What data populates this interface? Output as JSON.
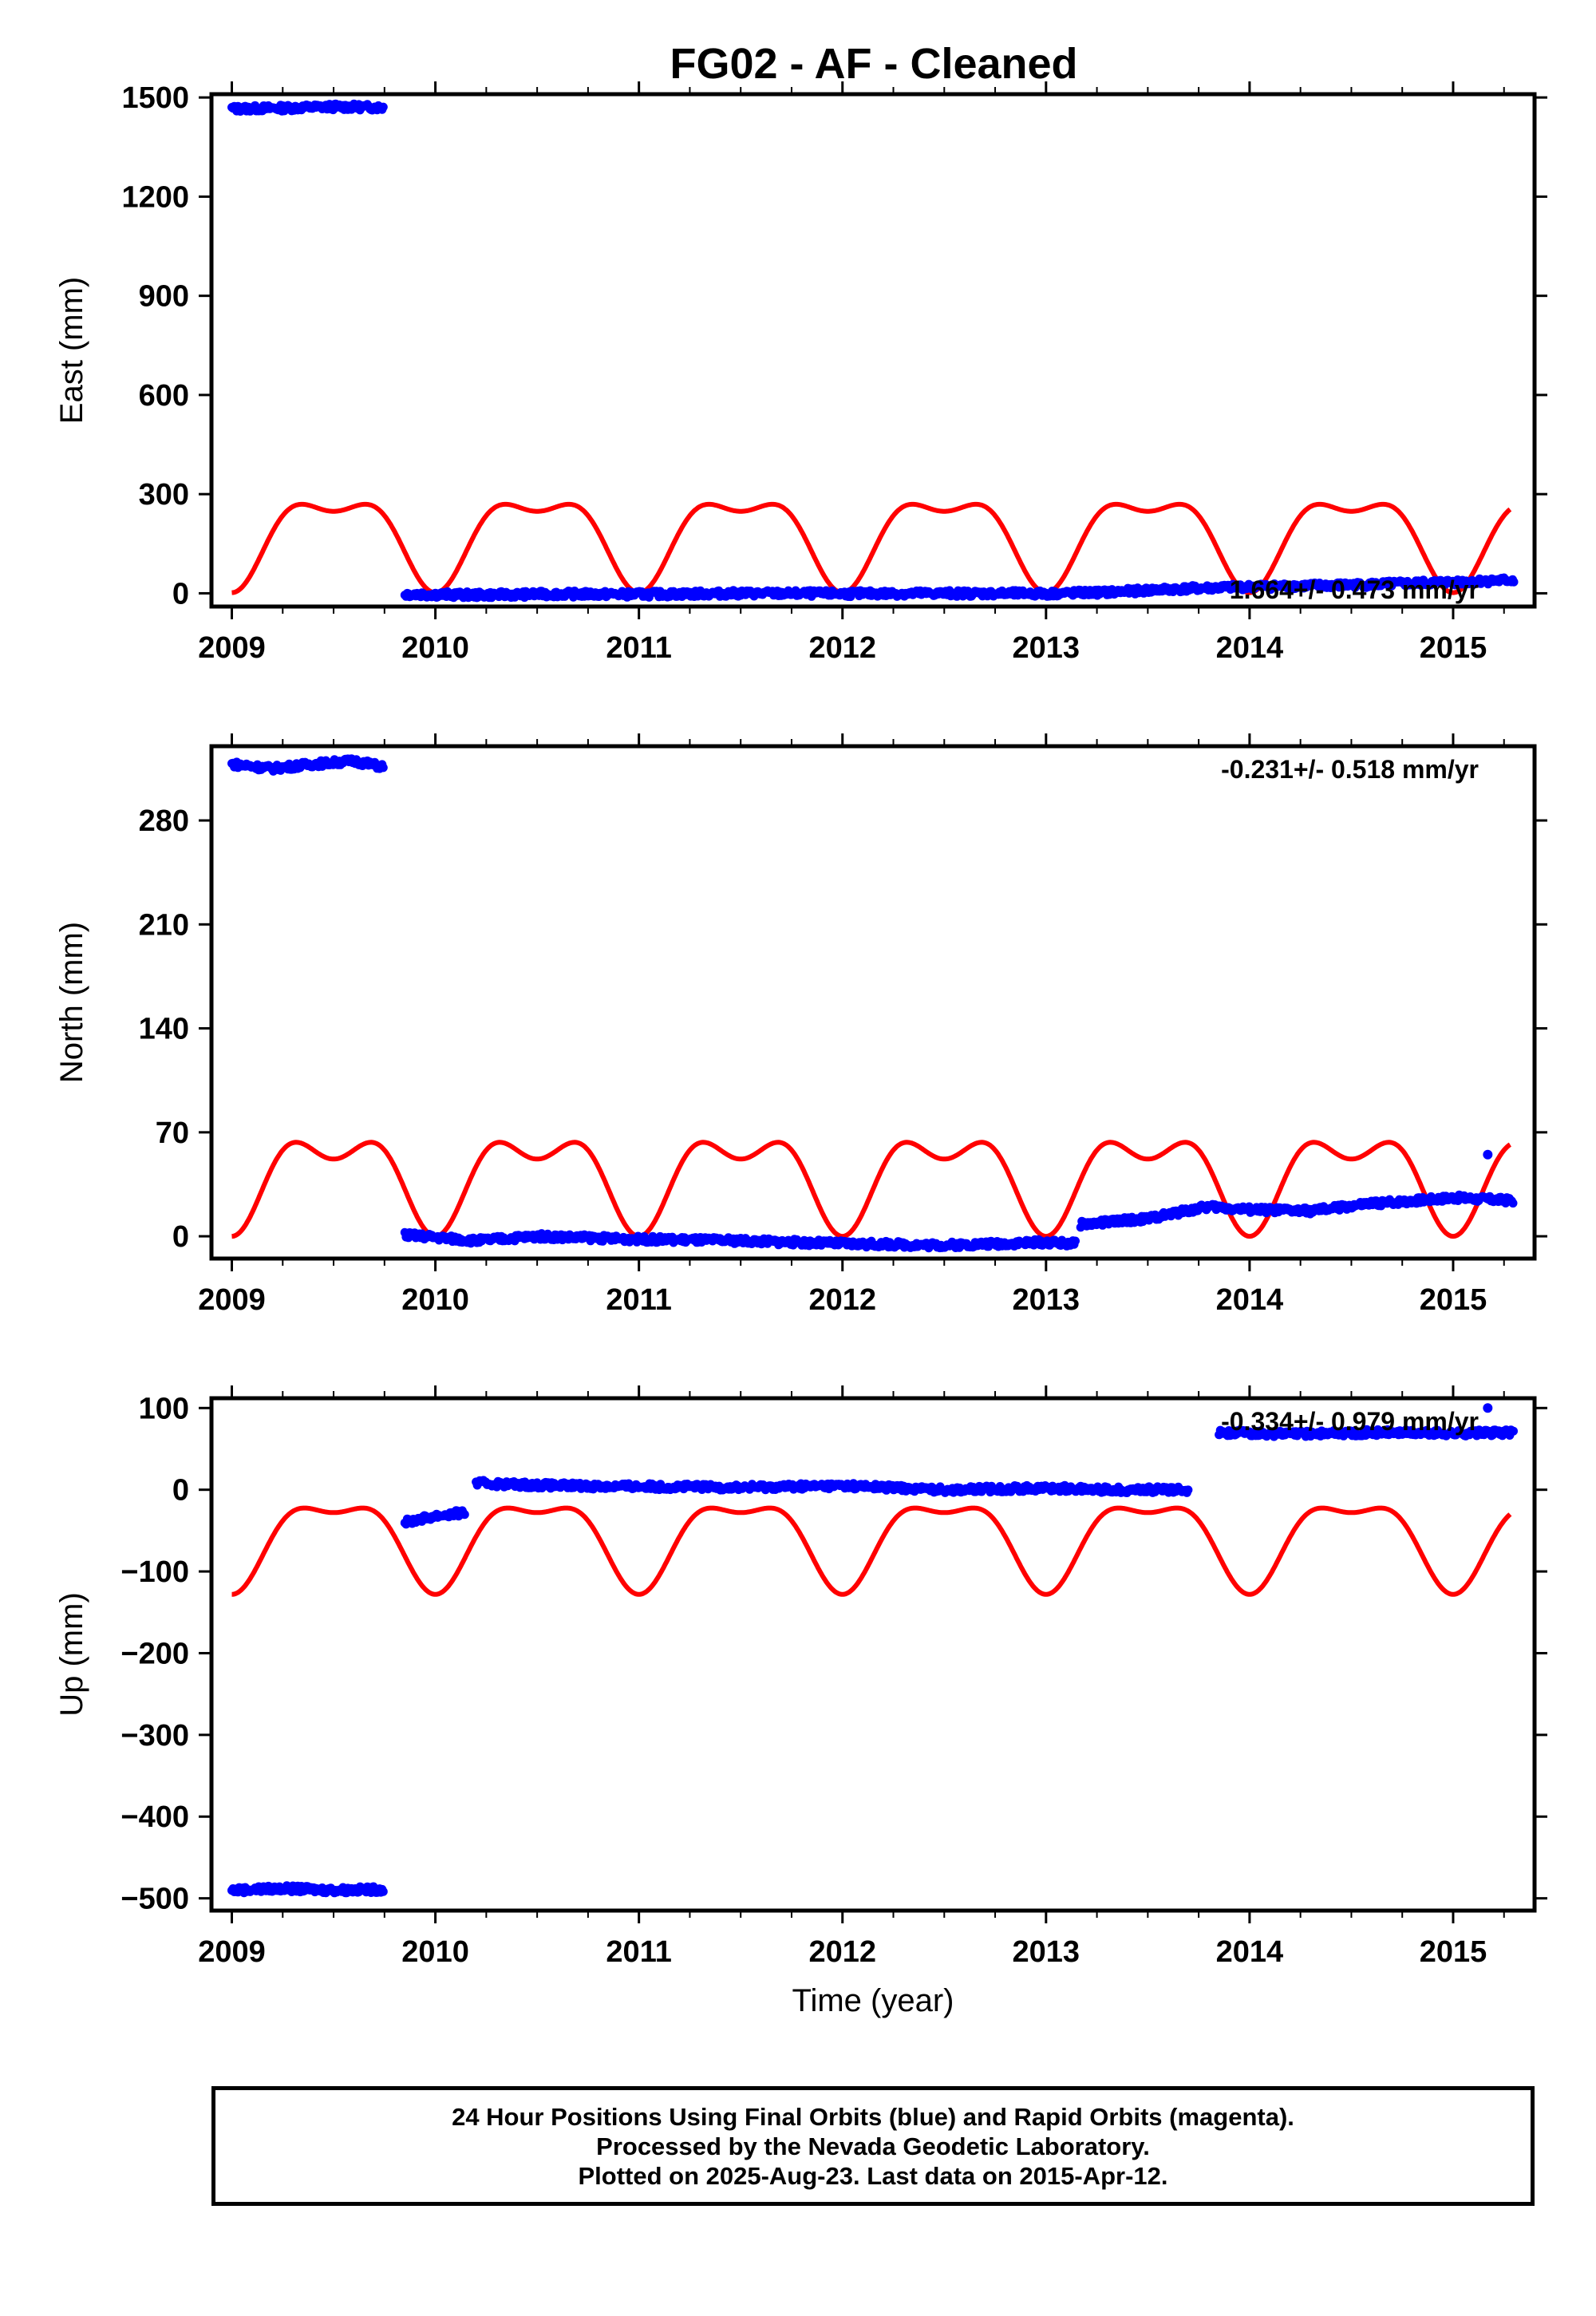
{
  "title": "FG02  - AF - Cleaned",
  "footer": {
    "line1": "24 Hour Positions Using Final Orbits (blue) and Rapid Orbits (magenta).",
    "line2": "Processed by the Nevada Geodetic Laboratory.",
    "line3": "Plotted on 2025-Aug-23. Last data on 2015-Apr-12."
  },
  "colors": {
    "observations": "#0000ff",
    "model": "#ff0000",
    "axes": "#000000"
  },
  "chart_data": [
    {
      "type": "scatter",
      "panel": "east",
      "ylabel": "East (mm)",
      "xlabel": "",
      "rate_text": "1.664+/- 0.473 mm/yr",
      "xlim": [
        2008.9,
        2015.4
      ],
      "ylim": [
        -40,
        1510
      ],
      "xticks": [
        2009,
        2010,
        2011,
        2012,
        2013,
        2014,
        2015
      ],
      "yticks": [
        0,
        300,
        600,
        900,
        1200,
        1500
      ],
      "grid": false,
      "observation_segments": [
        {
          "x": [
            2009.0,
            2009.25,
            2009.5,
            2009.75
          ],
          "y": [
            1466,
            1468,
            1472,
            1470
          ]
        },
        {
          "x": [
            2009.85,
            2010.2,
            2010.6,
            2011.0,
            2011.5,
            2012.0,
            2012.5,
            2013.0,
            2013.3,
            2013.6,
            2014.0,
            2014.5,
            2014.9,
            2015.3
          ],
          "y": [
            -2,
            -5,
            -2,
            -3,
            0,
            -1,
            0,
            -1,
            3,
            12,
            20,
            25,
            32,
            40
          ]
        }
      ],
      "model_curve": {
        "x_start": 2009.0,
        "x_end": 2015.28,
        "baseline": 180,
        "annual_amplitude": 123,
        "semiannual_amplitude": 55
      }
    },
    {
      "type": "scatter",
      "panel": "north",
      "ylabel": "North (mm)",
      "xlabel": "",
      "rate_text": "-0.231+/- 0.518 mm/yr",
      "xlim": [
        2008.9,
        2015.4
      ],
      "ylim": [
        -15,
        330
      ],
      "xticks": [
        2009,
        2010,
        2011,
        2012,
        2013,
        2014,
        2015
      ],
      "yticks": [
        0,
        70,
        140,
        210,
        280
      ],
      "grid": false,
      "observation_segments": [
        {
          "x": [
            2009.0,
            2009.2,
            2009.4,
            2009.6,
            2009.75
          ],
          "y": [
            318,
            315,
            318,
            320,
            316
          ]
        },
        {
          "x": [
            2009.85,
            2010.2,
            2010.5,
            2011.0,
            2011.5,
            2012.0,
            2012.5,
            2013.0,
            2013.15
          ],
          "y": [
            1,
            -3,
            0,
            -2,
            -3,
            -5,
            -6,
            -4,
            -5
          ]
        },
        {
          "x": [
            2013.17,
            2013.5,
            2013.8,
            2014.0,
            2014.3,
            2014.6,
            2015.0,
            2015.3
          ],
          "y": [
            8,
            12,
            20,
            18,
            17,
            22,
            26,
            24
          ]
        }
      ],
      "outliers": [
        {
          "x": 2015.17,
          "y": 55
        }
      ],
      "model_curve": {
        "x_start": 2009.0,
        "x_end": 2015.28,
        "baseline": 42,
        "annual_amplitude": 26,
        "semiannual_amplitude": 16
      }
    },
    {
      "type": "scatter",
      "panel": "up",
      "ylabel": "Up (mm)",
      "xlabel": "Time (year)",
      "rate_text": "-0.334+/- 0.979 mm/yr",
      "xlim": [
        2008.9,
        2015.4
      ],
      "ylim": [
        -515,
        112
      ],
      "xticks": [
        2009,
        2010,
        2011,
        2012,
        2013,
        2014,
        2015
      ],
      "yticks": [
        100,
        0,
        -100,
        -200,
        -300,
        -400,
        -500
      ],
      "grid": false,
      "observation_segments": [
        {
          "x": [
            2009.0,
            2009.25,
            2009.5,
            2009.75
          ],
          "y": [
            -490,
            -488,
            -490,
            -489
          ]
        },
        {
          "x": [
            2009.85,
            2010.0,
            2010.15
          ],
          "y": [
            -40,
            -32,
            -28
          ]
        },
        {
          "x": [
            2010.2,
            2010.6,
            2011.0,
            2011.5,
            2012.0,
            2012.5,
            2013.0,
            2013.35,
            2013.7
          ],
          "y": [
            8,
            5,
            4,
            3,
            5,
            0,
            2,
            0,
            0
          ]
        },
        {
          "x": [
            2013.85,
            2014.2,
            2014.6,
            2015.0,
            2015.3
          ],
          "y": [
            70,
            68,
            70,
            69,
            70
          ]
        }
      ],
      "outliers": [
        {
          "x": 2015.17,
          "y": 100
        }
      ],
      "model_curve": {
        "x_start": 2009.0,
        "x_end": 2015.28,
        "baseline": -58,
        "annual_amplitude": 50,
        "semiannual_amplitude": 20
      }
    }
  ]
}
